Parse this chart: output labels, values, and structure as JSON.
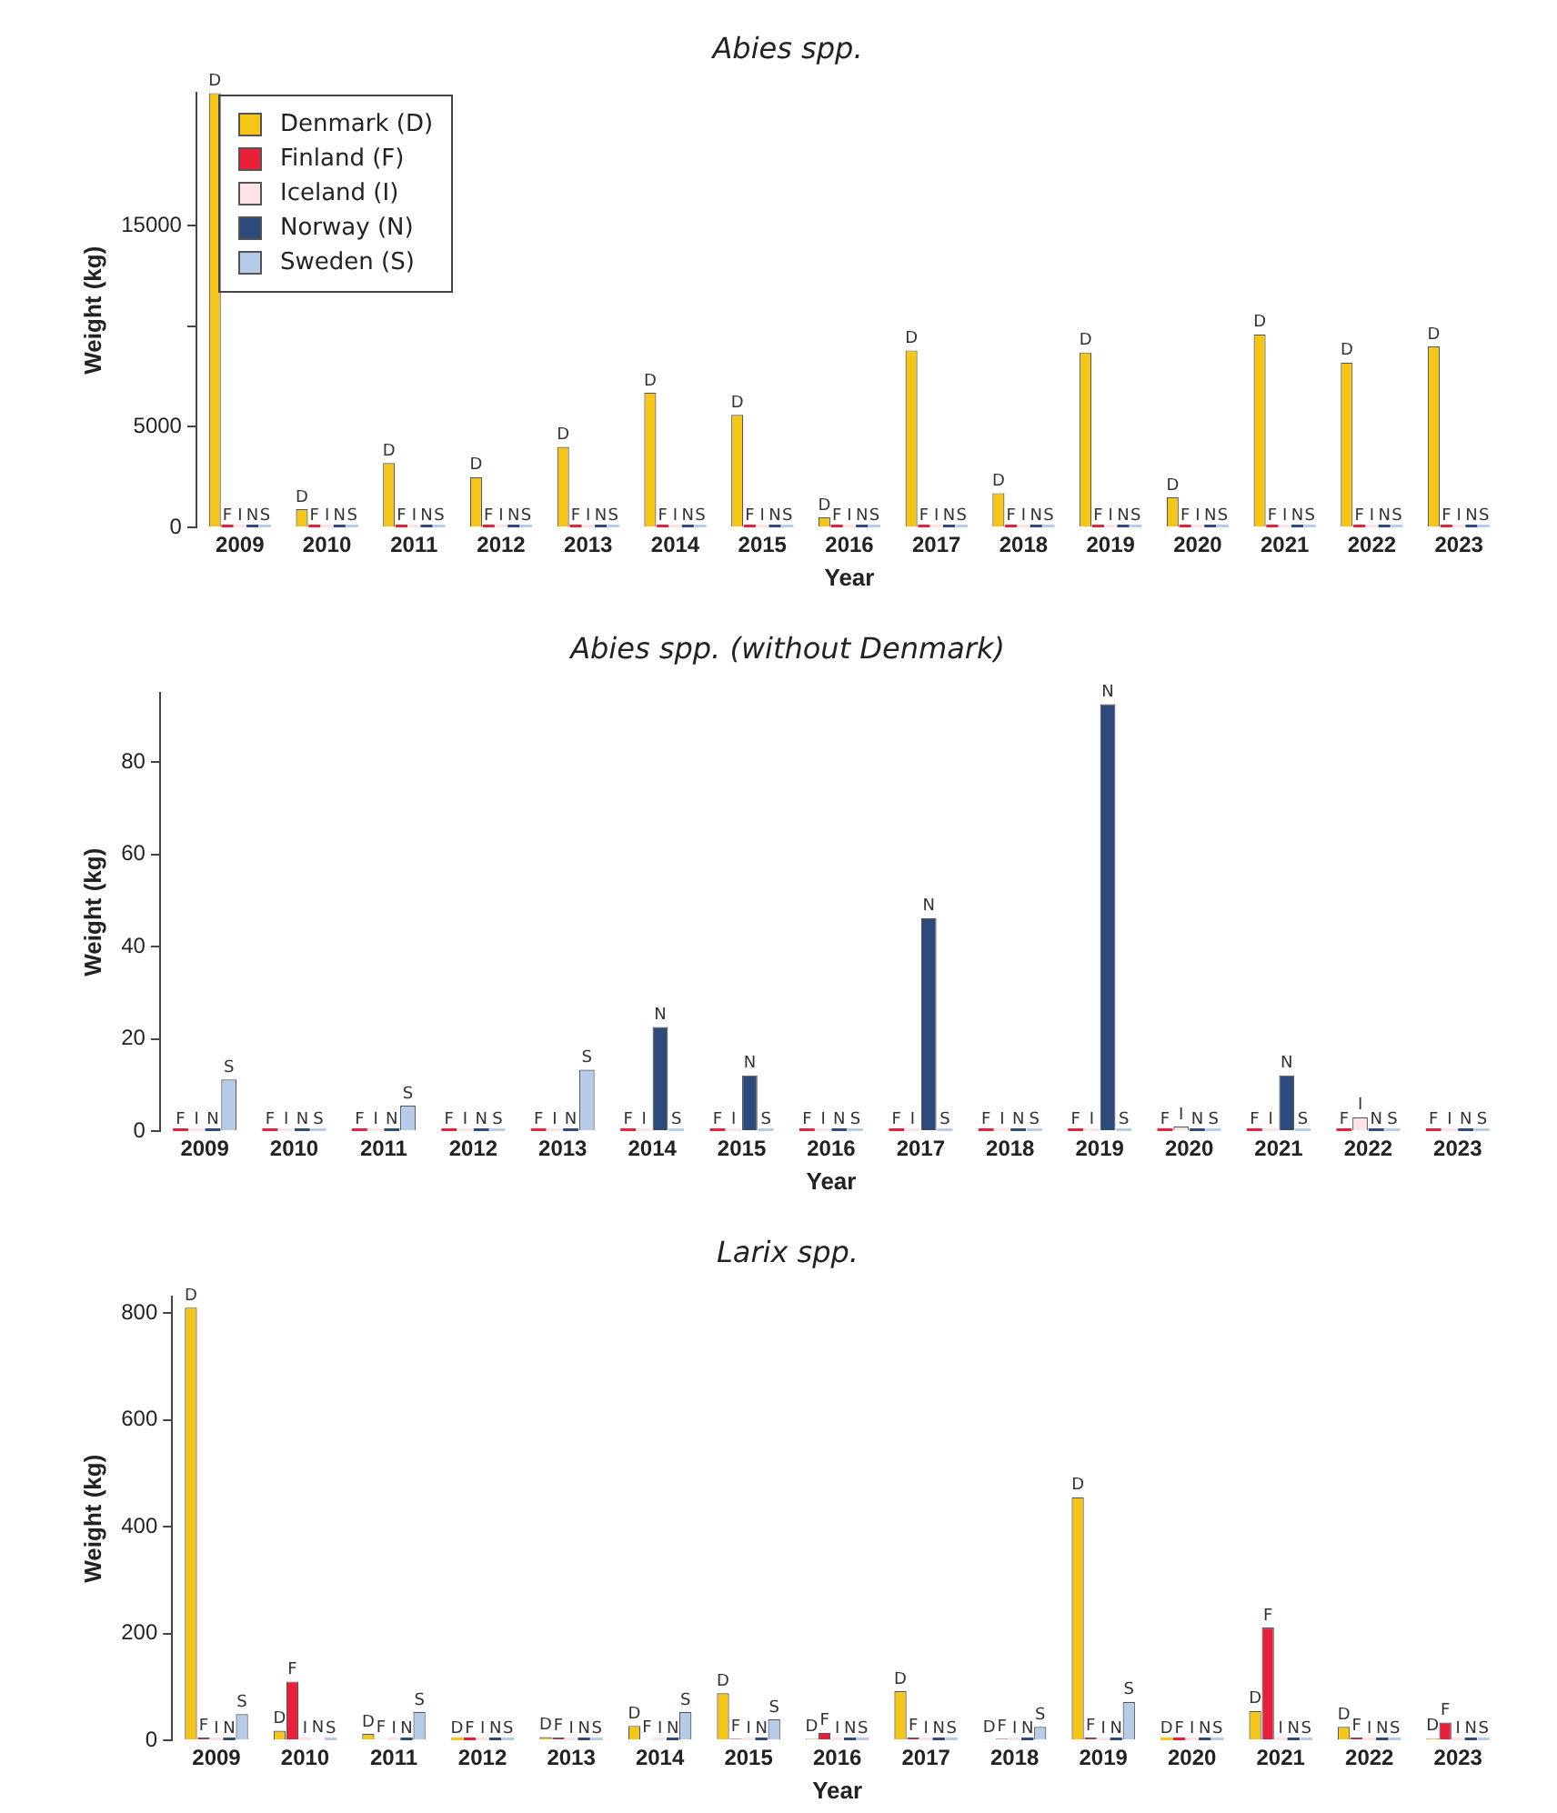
{
  "chart_data": [
    {
      "type": "bar",
      "title": "Abies spp.",
      "xlabel": "Year",
      "ylabel": "Weight (kg)",
      "categories": [
        "2009",
        "2010",
        "2011",
        "2012",
        "2013",
        "2014",
        "2015",
        "2016",
        "2017",
        "2018",
        "2019",
        "2020",
        "2021",
        "2022",
        "2023"
      ],
      "series": [
        {
          "name": "Denmark (D)",
          "color": "#f5c518",
          "values": [
            21600,
            900,
            3200,
            2500,
            4000,
            6700,
            5600,
            500,
            8800,
            1700,
            8700,
            1500,
            9600,
            8200,
            9000
          ],
          "value_labels": [
            "D",
            "D",
            "D",
            "D",
            "D",
            "D",
            "D",
            "D",
            "D",
            "D",
            "D",
            "D",
            "D",
            "D",
            "D"
          ]
        },
        {
          "name": "Finland (F)",
          "color": "#e8203a",
          "values": [
            0,
            0,
            0,
            0,
            0,
            0,
            0,
            0,
            0,
            0,
            0,
            0,
            0,
            0,
            0
          ],
          "value_labels": [
            "F",
            "F",
            "F",
            "F",
            "F",
            "F",
            "F",
            "F",
            "F",
            "F",
            "F",
            "F",
            "F",
            "F",
            "F"
          ]
        },
        {
          "name": "Iceland (I)",
          "color": "#fbe3e6",
          "values": [
            0,
            0,
            0,
            0,
            0,
            0,
            0,
            0,
            0,
            0,
            0,
            0,
            0,
            0,
            0
          ],
          "value_labels": [
            "I",
            "I",
            "I",
            "I",
            "I",
            "I",
            "I",
            "I",
            "I",
            "I",
            "I",
            "I",
            "I",
            "I",
            "I"
          ]
        },
        {
          "name": "Norway (N)",
          "color": "#2c4a7c",
          "values": [
            0,
            0,
            0,
            0,
            0,
            0,
            0,
            0,
            0,
            0,
            0,
            0,
            0,
            0,
            0
          ],
          "value_labels": [
            "N",
            "N",
            "N",
            "N",
            "N",
            "N",
            "N",
            "N",
            "N",
            "N",
            "N",
            "N",
            "N",
            "N",
            "N"
          ]
        },
        {
          "name": "Sweden (S)",
          "color": "#b5cbe8",
          "values": [
            0,
            0,
            0,
            0,
            0,
            0,
            0,
            0,
            0,
            0,
            0,
            0,
            0,
            0,
            0
          ],
          "value_labels": [
            "S",
            "S",
            "S",
            "S",
            "S",
            "S",
            "S",
            "S",
            "S",
            "S",
            "S",
            "S",
            "S",
            "S",
            "S"
          ]
        }
      ],
      "ylim": [
        0,
        21600
      ],
      "yticks": [
        0,
        5000,
        {
          "value": 10000,
          "label": null
        },
        15000
      ],
      "grid": false,
      "legend": "top left"
    },
    {
      "type": "bar",
      "title": "Abies spp. (without Denmark)",
      "xlabel": "Year",
      "ylabel": "Weight (kg)",
      "categories": [
        "2009",
        "2010",
        "2011",
        "2012",
        "2013",
        "2014",
        "2015",
        "2016",
        "2017",
        "2018",
        "2019",
        "2020",
        "2021",
        "2022",
        "2023"
      ],
      "series": [
        {
          "color": "#e8203a",
          "values": [
            0,
            0,
            0,
            0,
            0,
            0,
            0,
            0,
            0,
            0,
            0,
            0,
            0,
            0,
            0
          ],
          "value_labels": [
            "F",
            "F",
            "F",
            "F",
            "F",
            "F",
            "F",
            "F",
            "F",
            "F",
            "F",
            "F",
            "F",
            "F",
            "F"
          ]
        },
        {
          "color": "#fbe3e6",
          "values": [
            0,
            0,
            0,
            0,
            0,
            0,
            0,
            0,
            0,
            0,
            0,
            1,
            0,
            3,
            0
          ],
          "value_labels": [
            "I",
            "I",
            "I",
            "I",
            "I",
            "I",
            "I",
            "I",
            "I",
            "I",
            "I",
            "I",
            "I",
            "I",
            "I"
          ]
        },
        {
          "color": "#2c4a7c",
          "values": [
            0,
            0,
            0,
            0,
            0,
            22.6,
            12.1,
            0,
            46.2,
            0,
            92.6,
            0,
            12.1,
            0,
            0
          ],
          "value_labels": [
            "N",
            "N",
            "N",
            "N",
            "N",
            "N",
            "N",
            "N",
            "N",
            "N",
            "N",
            "N",
            "N",
            "N",
            "N"
          ]
        },
        {
          "color": "#b5cbe8",
          "values": [
            11.2,
            0,
            5.5,
            0,
            13.3,
            0,
            0,
            0,
            0,
            0,
            0,
            0,
            0,
            0,
            0
          ],
          "value_labels": [
            "S",
            "S",
            "S",
            "S",
            "S",
            "S",
            "S",
            "S",
            "S",
            "S",
            "S",
            "S",
            "S",
            "S",
            "S"
          ]
        }
      ],
      "ylim": [
        0,
        95
      ],
      "yticks": [
        0,
        20,
        40,
        60,
        80
      ],
      "grid": false,
      "legend": false
    },
    {
      "type": "bar",
      "title": "Larix spp.",
      "xlabel": "Year",
      "ylabel": "Weight (kg)",
      "categories": [
        "2009",
        "2010",
        "2011",
        "2012",
        "2013",
        "2014",
        "2015",
        "2016",
        "2017",
        "2018",
        "2019",
        "2020",
        "2021",
        "2022",
        "2023"
      ],
      "series": [
        {
          "color": "#f5c518",
          "values": [
            810,
            18,
            12,
            0,
            6,
            27,
            88,
            3,
            92,
            2,
            455,
            0,
            55,
            25,
            4
          ],
          "value_labels": [
            "D",
            "D",
            "D",
            "D",
            "D",
            "D",
            "D",
            "D",
            "D",
            "D",
            "D",
            "D",
            "D",
            "D",
            "D"
          ]
        },
        {
          "color": "#e8203a",
          "values": [
            5,
            110,
            2,
            0,
            5,
            2,
            3,
            14,
            5,
            3,
            5,
            0,
            211,
            5,
            33
          ],
          "value_labels": [
            "F",
            "F",
            "F",
            "F",
            "F",
            "F",
            "F",
            "F",
            "F",
            "F",
            "F",
            "F",
            "F",
            "F",
            "F"
          ]
        },
        {
          "color": "#fbe3e6",
          "values": [
            0,
            0,
            0,
            0,
            0,
            0,
            0,
            0,
            0,
            0,
            0,
            0,
            0,
            0,
            0
          ],
          "value_labels": [
            "I",
            "I",
            "I",
            "I",
            "I",
            "I",
            "I",
            "I",
            "I",
            "I",
            "I",
            "I",
            "I",
            "I",
            "I"
          ]
        },
        {
          "color": "#2c4a7c",
          "values": [
            0,
            2,
            0,
            0,
            0,
            0,
            0,
            0,
            0,
            0,
            0,
            0,
            0,
            0,
            0
          ],
          "value_labels": [
            "N",
            "N",
            "N",
            "N",
            "N",
            "N",
            "N",
            "N",
            "N",
            "N",
            "N",
            "N",
            "N",
            "N",
            "N"
          ]
        },
        {
          "color": "#b5cbe8",
          "values": [
            49,
            0,
            53,
            0,
            0,
            53,
            39,
            0,
            0,
            25,
            72,
            0,
            0,
            0,
            0
          ],
          "value_labels": [
            "S",
            "S",
            "S",
            "S",
            "S",
            "S",
            "S",
            "S",
            "S",
            "S",
            "S",
            "S",
            "S",
            "S",
            "S"
          ]
        }
      ],
      "ylim": [
        0,
        830
      ],
      "yticks": [
        0,
        200,
        400,
        600,
        800
      ],
      "grid": false,
      "legend": false
    }
  ]
}
